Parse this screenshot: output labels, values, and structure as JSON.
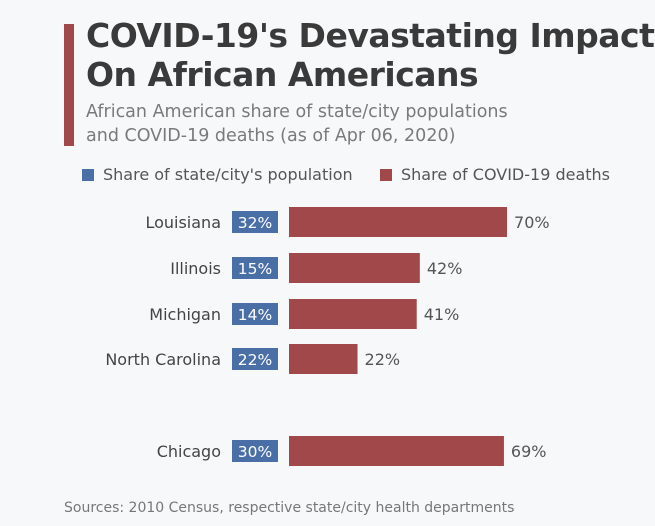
{
  "header": {
    "title_line1": "COVID-19's Devastating Impact",
    "title_line2": "On African Americans",
    "subtitle_line1": "African American share of state/city populations",
    "subtitle_line2": "and COVID-19 deaths (as of Apr 06, 2020)"
  },
  "colors": {
    "population": "#4a6fa6",
    "deaths": "#a0484a",
    "accent": "#a0484a"
  },
  "chart_data": {
    "type": "bar",
    "orientation": "horizontal",
    "categories": [
      "Louisiana",
      "Illinois",
      "Michigan",
      "North Carolina",
      "Chicago"
    ],
    "series": [
      {
        "name": "Share of state/city's population",
        "values": [
          32,
          15,
          14,
          22,
          30
        ],
        "labels": [
          "32%",
          "15%",
          "14%",
          "22%",
          "30%"
        ]
      },
      {
        "name": "Share of COVID-19 deaths",
        "values": [
          70,
          42,
          41,
          22,
          69
        ],
        "labels": [
          "70%",
          "42%",
          "41%",
          "22%",
          "69%"
        ]
      }
    ],
    "unit": "%",
    "legend": "top",
    "grid": false
  },
  "footer": {
    "source": "Sources: 2010 Census, respective state/city health departments"
  }
}
